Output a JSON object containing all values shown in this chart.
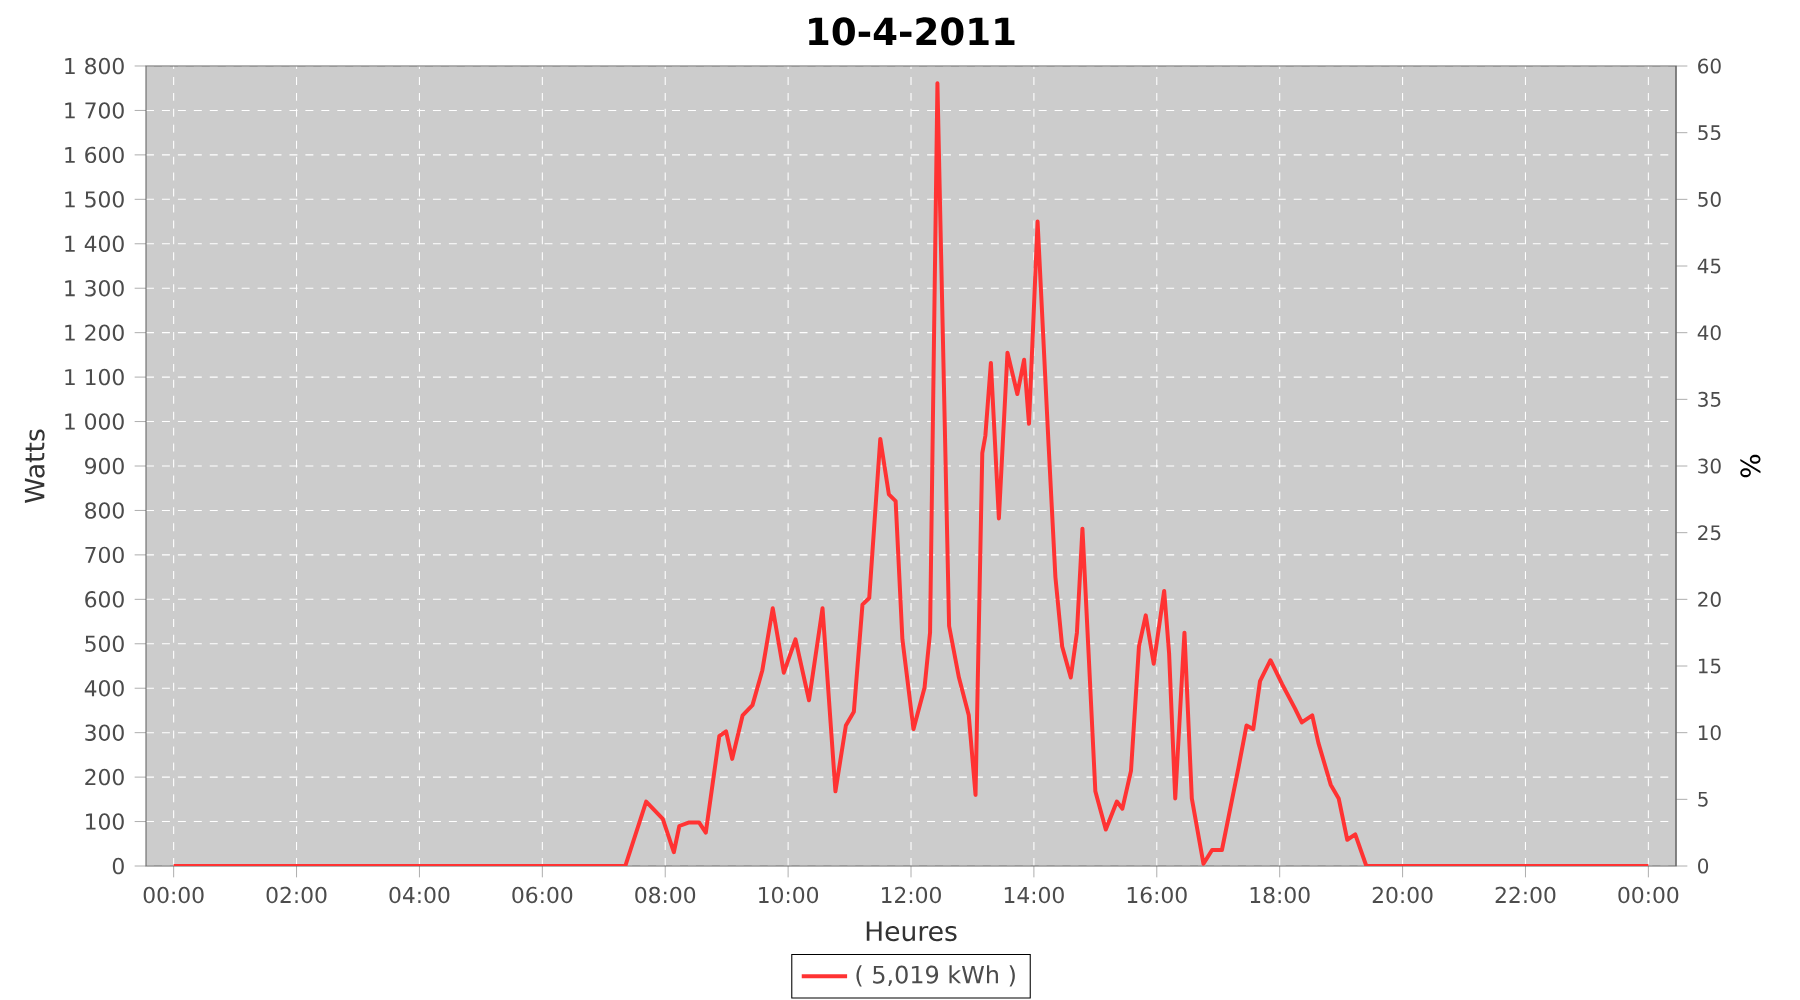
{
  "chart_data": {
    "type": "line",
    "title": "10-4-2011",
    "xlabel": "Heures",
    "ylabel": "Watts",
    "y2label": "%",
    "x": [
      0,
      7.35,
      7.69,
      7.96,
      8.14,
      8.23,
      8.39,
      8.55,
      8.66,
      8.88,
      8.99,
      9.09,
      9.26,
      9.42,
      9.58,
      9.75,
      9.93,
      10.12,
      10.34,
      10.56,
      10.77,
      10.94,
      11.07,
      11.21,
      11.32,
      11.5,
      11.64,
      11.75,
      11.86,
      12.04,
      12.22,
      12.31,
      12.43,
      12.62,
      12.78,
      12.94,
      13.05,
      13.16,
      13.21,
      13.3,
      13.43,
      13.57,
      13.73,
      13.84,
      13.92,
      14.06,
      14.24,
      14.35,
      14.46,
      14.6,
      14.7,
      14.79,
      14.89,
      15.0,
      15.17,
      15.35,
      15.44,
      15.58,
      15.71,
      15.82,
      15.95,
      16.12,
      16.2,
      16.3,
      16.45,
      16.57,
      16.76,
      16.9,
      17.06,
      17.33,
      17.46,
      17.57,
      17.68,
      17.85,
      18.04,
      18.25,
      18.36,
      18.53,
      18.63,
      18.83,
      18.96,
      19.1,
      19.23,
      19.41,
      24
    ],
    "series": [
      {
        "name": "( 5,019 kWh )",
        "color": "#ff3333",
        "values": [
          0,
          0,
          145,
          106,
          31,
          90,
          98,
          98,
          75,
          292,
          303,
          241,
          339,
          362,
          440,
          580,
          435,
          510,
          373,
          580,
          168,
          316,
          347,
          588,
          603,
          961,
          836,
          821,
          510,
          308,
          401,
          525,
          1761,
          540,
          424,
          339,
          160,
          929,
          968,
          1132,
          782,
          1155,
          1062,
          1139,
          995,
          1450,
          945,
          650,
          494,
          424,
          525,
          759,
          479,
          168,
          82,
          145,
          129,
          214,
          494,
          564,
          455,
          619,
          479,
          152,
          525,
          152,
          5,
          36,
          36,
          222,
          316,
          308,
          416,
          463,
          409,
          354,
          323,
          339,
          277,
          183,
          152,
          59,
          71,
          0,
          0
        ]
      }
    ],
    "xlim": [
      -0.45,
      24.45
    ],
    "xticks": [
      {
        "value": 0,
        "label": "00:00"
      },
      {
        "value": 2,
        "label": "02:00"
      },
      {
        "value": 4,
        "label": "04:00"
      },
      {
        "value": 6,
        "label": "06:00"
      },
      {
        "value": 8,
        "label": "08:00"
      },
      {
        "value": 10,
        "label": "10:00"
      },
      {
        "value": 12,
        "label": "12:00"
      },
      {
        "value": 14,
        "label": "14:00"
      },
      {
        "value": 16,
        "label": "16:00"
      },
      {
        "value": 18,
        "label": "18:00"
      },
      {
        "value": 20,
        "label": "20:00"
      },
      {
        "value": 22,
        "label": "22:00"
      },
      {
        "value": 24,
        "label": "00:00"
      }
    ],
    "ylim": [
      0,
      1800
    ],
    "yticks": [
      0,
      100,
      200,
      300,
      400,
      500,
      600,
      700,
      800,
      900,
      {
        "value": 1000,
        "label": "1 000"
      },
      {
        "value": 1100,
        "label": "1 100"
      },
      {
        "value": 1200,
        "label": "1 200"
      },
      {
        "value": 1300,
        "label": "1 300"
      },
      {
        "value": 1400,
        "label": "1 400"
      },
      {
        "value": 1500,
        "label": "1 500"
      },
      {
        "value": 1600,
        "label": "1 600"
      },
      {
        "value": 1700,
        "label": "1 700"
      },
      {
        "value": 1800,
        "label": "1 800"
      }
    ],
    "y2lim": [
      0,
      60
    ],
    "y2ticks": [
      0,
      5,
      10,
      15,
      20,
      25,
      30,
      35,
      40,
      45,
      50,
      55,
      60
    ],
    "grid": true,
    "legend": "bottom",
    "line_style": "solid"
  }
}
